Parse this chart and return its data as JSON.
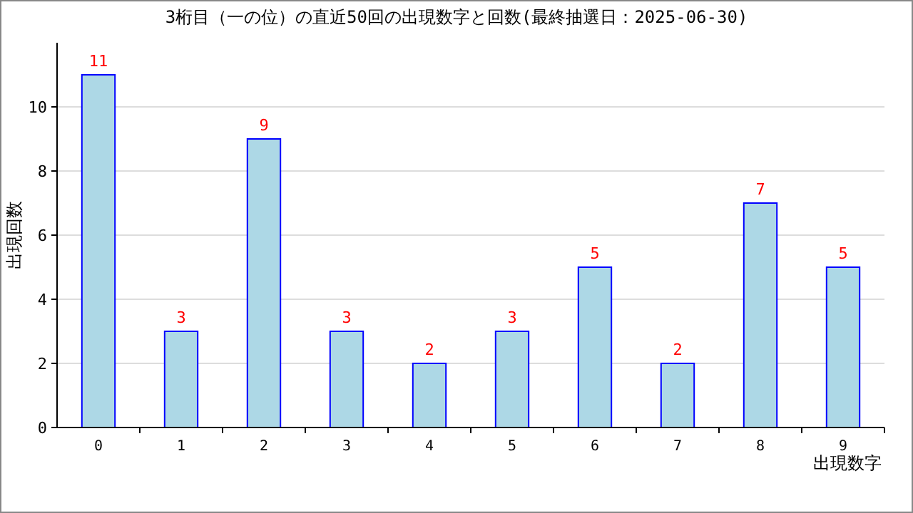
{
  "chart_data": {
    "type": "bar",
    "title": "3桁目（一の位）の直近50回の出現数字と回数(最終抽選日：2025-06-30)",
    "xlabel": "出現数字",
    "ylabel": "出現回数",
    "categories": [
      "0",
      "1",
      "2",
      "3",
      "4",
      "5",
      "6",
      "7",
      "8",
      "9"
    ],
    "values": [
      11,
      3,
      9,
      3,
      2,
      3,
      5,
      2,
      7,
      5
    ],
    "color": "#add8e6",
    "ylim": [
      0,
      12
    ],
    "yticks": [
      0,
      2,
      4,
      6,
      8,
      10
    ],
    "grid": "y",
    "data_labels": true
  }
}
